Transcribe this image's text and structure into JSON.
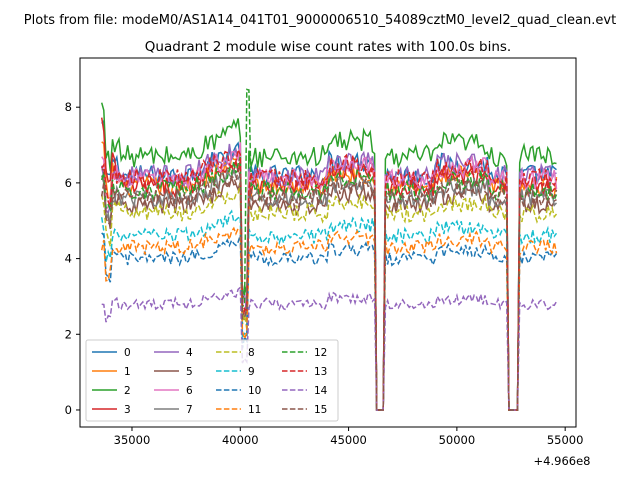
{
  "chart_data": {
    "type": "line",
    "suptitle": "Plots from file: modeM0/AS1A14_041T01_9000006510_54089cztM0_level2_quad_clean.evt",
    "title": "Quadrant 2 module wise count rates with 100.0s bins.",
    "xlabel": "",
    "ylabel": "",
    "x_offset_label": "+4.966e8",
    "xlim": [
      32600,
      55500
    ],
    "ylim": [
      -0.45,
      9.3
    ],
    "xticks": [
      35000,
      40000,
      45000,
      50000,
      55000
    ],
    "xtick_labels": [
      "35000",
      "40000",
      "45000",
      "50000",
      "55000"
    ],
    "yticks": [
      0,
      2,
      4,
      6,
      8
    ],
    "ytick_labels": [
      "0",
      "2",
      "4",
      "6",
      "8"
    ],
    "legend_position": "lower-left",
    "segments": [
      [
        33600,
        40100
      ],
      [
        40350,
        46200
      ],
      [
        46700,
        52300
      ],
      [
        52900,
        54600
      ]
    ],
    "gaps": [
      [
        46200,
        46700
      ],
      [
        52300,
        52900
      ]
    ],
    "series": [
      {
        "name": "0",
        "level": 6.2,
        "color": "#1f77b4",
        "dash": "solid",
        "start": 7.5
      },
      {
        "name": "1",
        "level": 5.9,
        "color": "#ff7f0e",
        "dash": "solid",
        "start": 7.0
      },
      {
        "name": "2",
        "level": 6.7,
        "color": "#2ca02c",
        "dash": "solid",
        "start": 8.0
      },
      {
        "name": "3",
        "level": 5.9,
        "color": "#d62728",
        "dash": "solid",
        "start": 7.6
      },
      {
        "name": "4",
        "level": 6.2,
        "color": "#9467bd",
        "dash": "solid",
        "start": 6.3
      },
      {
        "name": "5",
        "level": 5.4,
        "color": "#8c564b",
        "dash": "solid",
        "start": 6.2
      },
      {
        "name": "6",
        "level": 6.1,
        "color": "#e377c2",
        "dash": "solid",
        "start": 6.5
      },
      {
        "name": "7",
        "level": 5.6,
        "color": "#7f7f7f",
        "dash": "solid",
        "start": 6.0
      },
      {
        "name": "8",
        "level": 5.2,
        "color": "#bcbd22",
        "dash": "dashed",
        "start": 5.5
      },
      {
        "name": "9",
        "level": 4.6,
        "color": "#17becf",
        "dash": "dashed",
        "start": 4.9
      },
      {
        "name": "10",
        "level": 4.0,
        "color": "#1f77b4",
        "dash": "dashed",
        "start": 4.5
      },
      {
        "name": "11",
        "level": 4.3,
        "color": "#ff7f0e",
        "dash": "dashed",
        "start": 4.4
      },
      {
        "name": "12",
        "level": 5.8,
        "color": "#2ca02c",
        "dash": "dashed",
        "start": 6.3
      },
      {
        "name": "13",
        "level": 6.1,
        "color": "#d62728",
        "dash": "dashed",
        "start": 6.6
      },
      {
        "name": "14",
        "level": 2.8,
        "color": "#9467bd",
        "dash": "dashed",
        "start": 2.9
      },
      {
        "name": "15",
        "level": 5.6,
        "color": "#8c564b",
        "dash": "dashed",
        "start": 5.8
      }
    ]
  }
}
